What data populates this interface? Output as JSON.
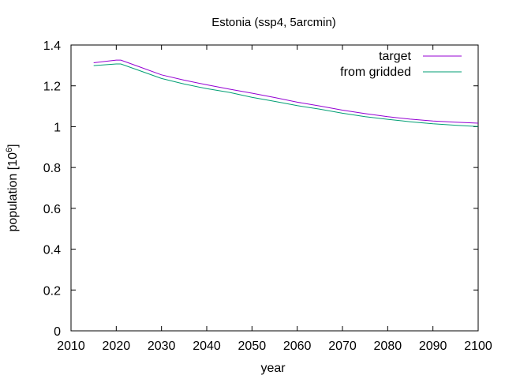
{
  "chart_data": {
    "type": "line",
    "title": "Estonia (ssp4, 5arcmin)",
    "xlabel": "year",
    "ylabel": "population [10^6]",
    "ylabel_base": "population [10",
    "ylabel_exp": "6",
    "ylabel_close": "]",
    "xlim": [
      2010,
      2100
    ],
    "ylim": [
      0,
      1.4
    ],
    "x_ticks": [
      2010,
      2020,
      2030,
      2040,
      2050,
      2060,
      2070,
      2080,
      2090,
      2100
    ],
    "y_ticks": [
      0,
      0.2,
      0.4,
      0.6,
      0.8,
      1,
      1.2,
      1.4
    ],
    "y_tick_labels": [
      "0",
      "0.2",
      "0.4",
      "0.6",
      "0.8",
      "1",
      "1.2",
      "1.4"
    ],
    "legend_position": "top-right",
    "grid": false,
    "series": [
      {
        "name": "target",
        "color": "#9400d3",
        "x": [
          2015,
          2020,
          2021,
          2025,
          2030,
          2035,
          2040,
          2045,
          2050,
          2055,
          2060,
          2065,
          2070,
          2075,
          2080,
          2085,
          2090,
          2095,
          2100
        ],
        "y": [
          1.313,
          1.326,
          1.326,
          1.294,
          1.254,
          1.228,
          1.205,
          1.184,
          1.164,
          1.143,
          1.12,
          1.101,
          1.081,
          1.064,
          1.049,
          1.037,
          1.028,
          1.022,
          1.017
        ]
      },
      {
        "name": "from gridded",
        "color": "#009e73",
        "x": [
          2015,
          2020,
          2021,
          2025,
          2030,
          2035,
          2040,
          2045,
          2050,
          2055,
          2060,
          2065,
          2070,
          2075,
          2080,
          2085,
          2090,
          2095,
          2100
        ],
        "y": [
          1.299,
          1.307,
          1.307,
          1.276,
          1.236,
          1.209,
          1.186,
          1.168,
          1.144,
          1.124,
          1.103,
          1.086,
          1.066,
          1.049,
          1.036,
          1.024,
          1.014,
          1.007,
          1.001
        ]
      }
    ]
  }
}
